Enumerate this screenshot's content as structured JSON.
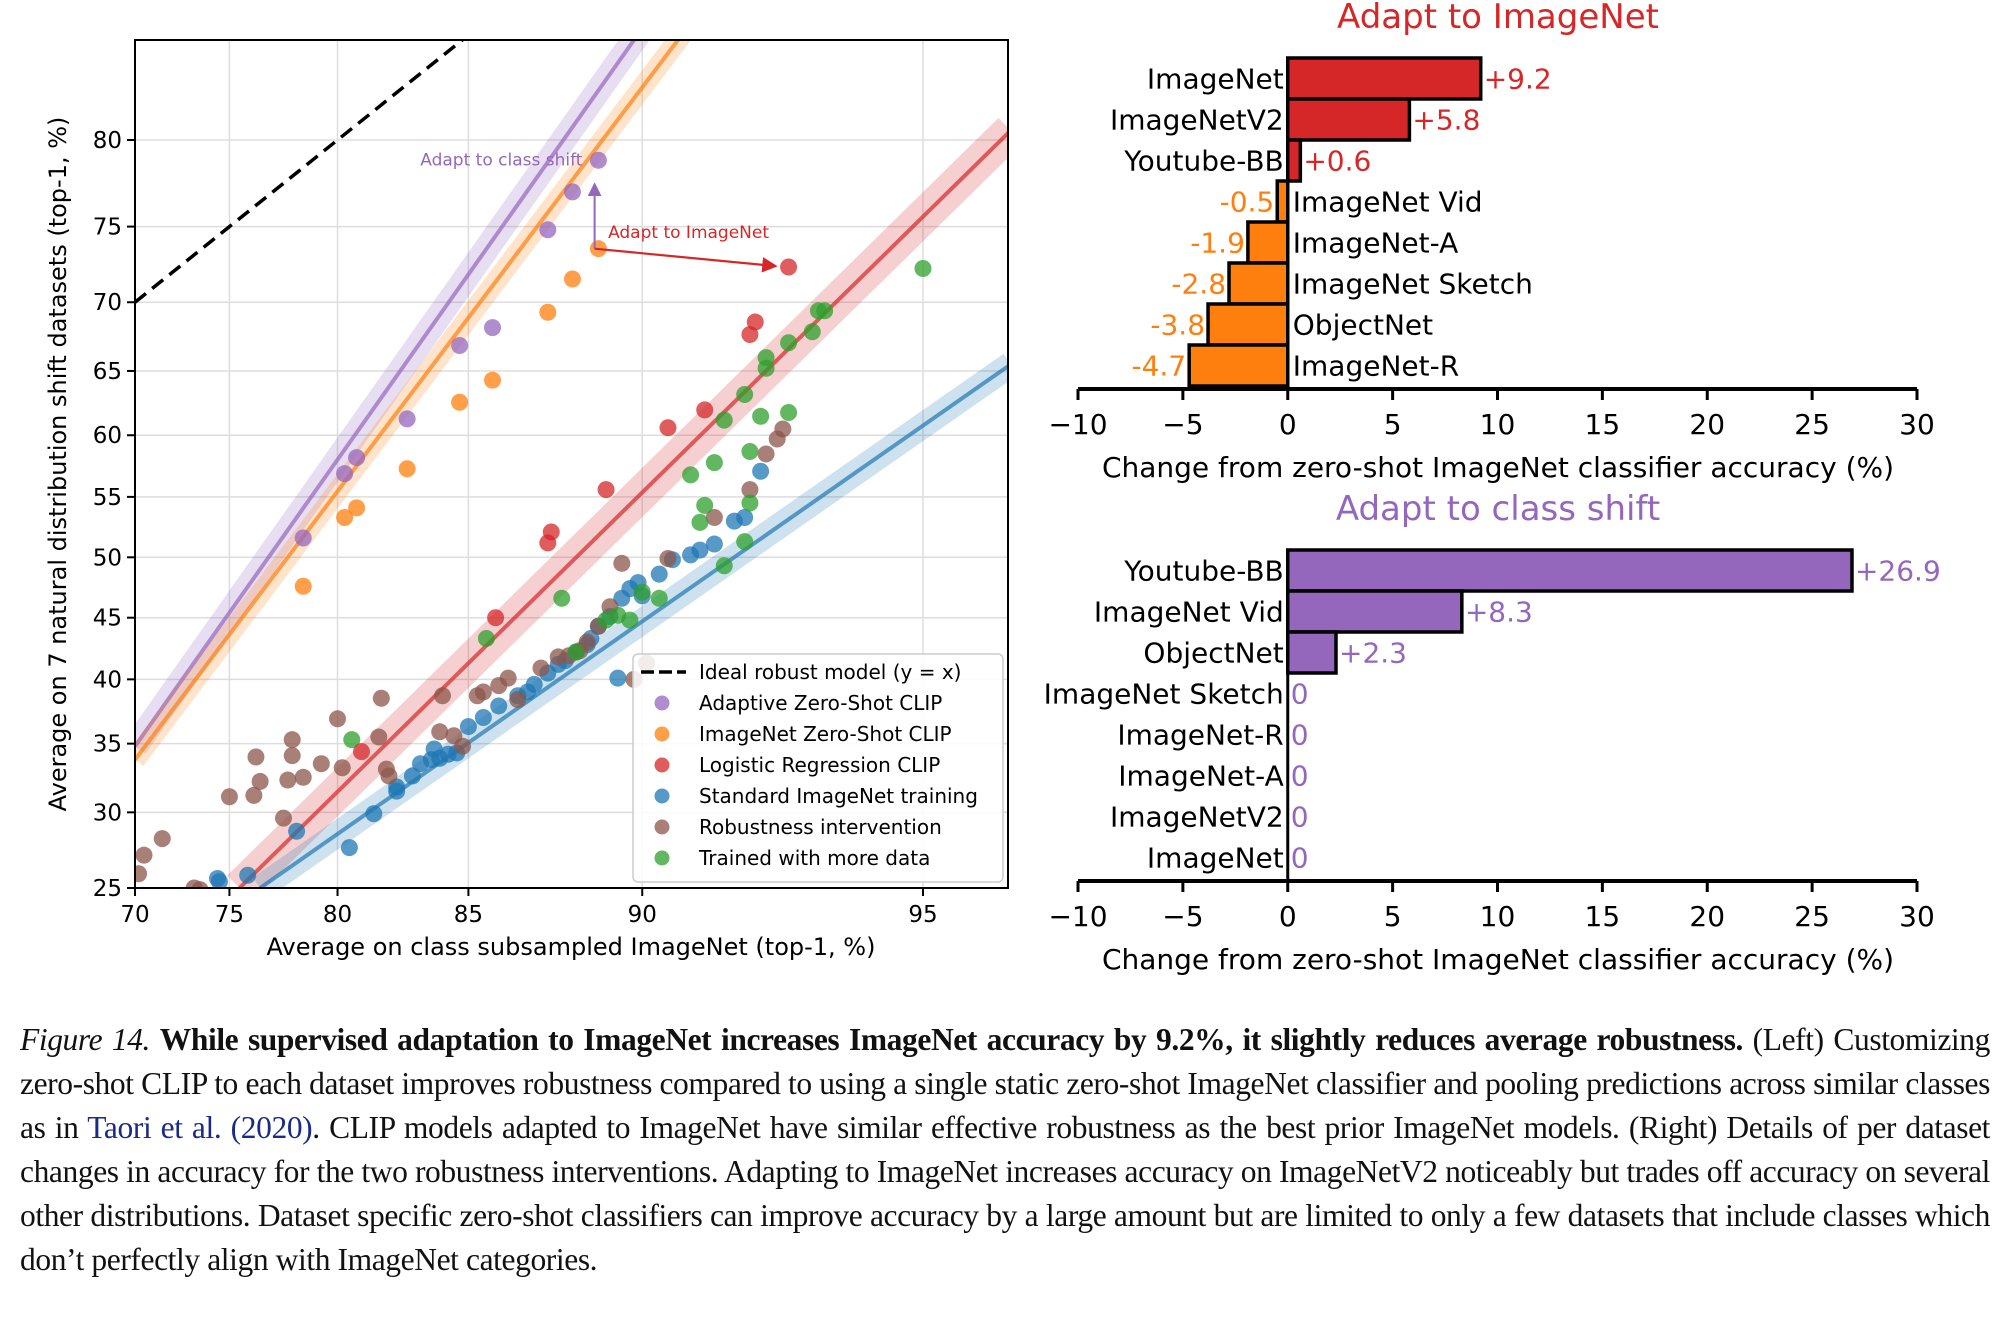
{
  "chart_data": [
    {
      "id": "left",
      "type": "scatter",
      "xlabel": "Average on class subsampled ImageNet (top-1, %)",
      "ylabel": "Average on 7 natural distribution shift datasets (top-1, %)",
      "xscale": "logit",
      "yscale": "logit",
      "xlim": [
        70,
        96
      ],
      "ylim": [
        25,
        84.8
      ],
      "xticks": [
        70,
        75,
        80,
        85,
        90,
        95
      ],
      "yticks": [
        25,
        30,
        35,
        40,
        45,
        50,
        55,
        60,
        65,
        70,
        75,
        80
      ],
      "grid": true,
      "legend_position": "lower-right",
      "legend": [
        {
          "label": "Ideal robust model (y = x)",
          "kind": "dashed-line",
          "color": "#000000"
        },
        {
          "label": "Adaptive Zero-Shot CLIP",
          "kind": "marker",
          "color": "#9467bd"
        },
        {
          "label": "ImageNet Zero-Shot CLIP",
          "kind": "marker",
          "color": "#ff7f0e"
        },
        {
          "label": "Logistic Regression CLIP",
          "kind": "marker",
          "color": "#d62728"
        },
        {
          "label": "Standard ImageNet training",
          "kind": "marker",
          "color": "#1f77b4"
        },
        {
          "label": "Robustness intervention",
          "kind": "marker",
          "color": "#8c564b"
        },
        {
          "label": "Trained with more data",
          "kind": "marker",
          "color": "#2ca02c"
        }
      ],
      "ideal_line": {
        "from": [
          70,
          70
        ],
        "to": [
          84.8,
          84.8
        ]
      },
      "fits": [
        {
          "series": "Adaptive Zero-Shot CLIP",
          "color": "#9467bd",
          "x": [
            70,
            90.5
          ],
          "y": [
            34.8,
            86.5
          ],
          "band": 1.6
        },
        {
          "series": "ImageNet Zero-Shot CLIP",
          "color": "#ff7f0e",
          "x": [
            70,
            91.5
          ],
          "y": [
            33.8,
            86.5
          ],
          "band": 1.3
        },
        {
          "series": "Logistic Regression CLIP",
          "color": "#d62728",
          "x": [
            75.5,
            96
          ],
          "y": [
            25,
            80.5
          ],
          "band": 2.2
        },
        {
          "series": "Standard ImageNet training",
          "color": "#1f77b4",
          "x": [
            76.5,
            96
          ],
          "y": [
            25,
            65.5
          ],
          "band": 1.6
        }
      ],
      "annotations": [
        {
          "text": "Adapt to class shift",
          "color": "#9467bd",
          "arrow_from": [
            88.8,
            73.6
          ],
          "arrow_to": [
            88.8,
            77.5
          ],
          "label_at": [
            88.2,
            78.9
          ]
        },
        {
          "text": "Adapt to ImageNet",
          "color": "#d62728",
          "arrow_from": [
            88.8,
            73.6
          ],
          "arrow_to": [
            93.0,
            72.4
          ],
          "label_at": [
            89.1,
            74.6
          ]
        }
      ],
      "series": [
        {
          "name": "Adaptive Zero-Shot CLIP",
          "color": "#9467bd",
          "points": [
            [
              78.5,
              51.6
            ],
            [
              80.3,
              56.9
            ],
            [
              80.8,
              58.2
            ],
            [
              82.8,
              61.3
            ],
            [
              84.7,
              66.9
            ],
            [
              85.8,
              68.2
            ],
            [
              87.5,
              74.8
            ],
            [
              88.2,
              77.1
            ],
            [
              88.9,
              78.9
            ]
          ]
        },
        {
          "name": "ImageNet Zero-Shot CLIP",
          "color": "#ff7f0e",
          "points": [
            [
              78.5,
              47.6
            ],
            [
              80.3,
              53.3
            ],
            [
              80.8,
              54.1
            ],
            [
              82.8,
              57.3
            ],
            [
              84.7,
              62.6
            ],
            [
              85.8,
              64.3
            ],
            [
              87.5,
              69.3
            ],
            [
              88.2,
              71.6
            ],
            [
              88.9,
              73.6
            ]
          ]
        },
        {
          "name": "Logistic Regression CLIP",
          "color": "#d62728",
          "points": [
            [
              81.0,
              34.4
            ],
            [
              85.9,
              45.0
            ],
            [
              87.5,
              51.2
            ],
            [
              87.6,
              52.1
            ],
            [
              89.1,
              55.6
            ],
            [
              90.6,
              60.6
            ],
            [
              91.4,
              62.0
            ],
            [
              92.3,
              67.7
            ],
            [
              92.4,
              68.6
            ],
            [
              93.0,
              72.4
            ]
          ]
        },
        {
          "name": "Standard ImageNet training",
          "color": "#1f77b4",
          "points": [
            [
              74.4,
              25.6
            ],
            [
              74.5,
              25.4
            ],
            [
              75.9,
              25.8
            ],
            [
              78.2,
              28.7
            ],
            [
              80.5,
              27.6
            ],
            [
              81.5,
              29.9
            ],
            [
              82.4,
              31.5
            ],
            [
              82.4,
              31.8
            ],
            [
              83.0,
              32.6
            ],
            [
              83.3,
              33.5
            ],
            [
              83.7,
              33.8
            ],
            [
              84.0,
              33.9
            ],
            [
              84.3,
              34.2
            ],
            [
              83.8,
              34.6
            ],
            [
              84.6,
              34.3
            ],
            [
              85.0,
              36.3
            ],
            [
              85.5,
              37.0
            ],
            [
              86.0,
              37.9
            ],
            [
              86.6,
              38.7
            ],
            [
              86.9,
              39.0
            ],
            [
              87.1,
              39.6
            ],
            [
              87.5,
              40.5
            ],
            [
              87.8,
              41.2
            ],
            [
              88.0,
              41.5
            ],
            [
              88.3,
              42.2
            ],
            [
              88.6,
              42.8
            ],
            [
              88.7,
              43.3
            ],
            [
              88.9,
              44.3
            ],
            [
              89.2,
              45.1
            ],
            [
              89.5,
              46.6
            ],
            [
              89.7,
              47.4
            ],
            [
              89.9,
              47.9
            ],
            [
              90.0,
              46.8
            ],
            [
              90.4,
              48.6
            ],
            [
              90.7,
              49.8
            ],
            [
              91.1,
              50.2
            ],
            [
              91.3,
              50.6
            ],
            [
              91.6,
              51.1
            ],
            [
              92.0,
              53.0
            ],
            [
              92.2,
              53.3
            ],
            [
              92.5,
              57.1
            ],
            [
              89.4,
              40.1
            ]
          ]
        },
        {
          "name": "Robustness intervention",
          "color": "#8c564b",
          "points": [
            [
              70.2,
              25.9
            ],
            [
              70.5,
              27.1
            ],
            [
              71.5,
              28.2
            ],
            [
              73.2,
              25.0
            ],
            [
              73.5,
              24.9
            ],
            [
              75.0,
              31.1
            ],
            [
              76.2,
              31.2
            ],
            [
              76.3,
              34.0
            ],
            [
              76.5,
              32.2
            ],
            [
              77.6,
              29.6
            ],
            [
              77.8,
              32.3
            ],
            [
              78.0,
              34.1
            ],
            [
              78.0,
              35.3
            ],
            [
              78.5,
              32.5
            ],
            [
              79.3,
              33.5
            ],
            [
              80.0,
              36.9
            ],
            [
              80.2,
              33.2
            ],
            [
              81.8,
              38.5
            ],
            [
              81.7,
              35.5
            ],
            [
              82.0,
              33.1
            ],
            [
              82.1,
              32.6
            ],
            [
              84.1,
              38.7
            ],
            [
              84.0,
              35.9
            ],
            [
              84.5,
              35.6
            ],
            [
              84.8,
              34.8
            ],
            [
              85.3,
              38.7
            ],
            [
              85.5,
              39.0
            ],
            [
              86.0,
              39.5
            ],
            [
              86.3,
              40.1
            ],
            [
              86.6,
              38.4
            ],
            [
              87.3,
              40.9
            ],
            [
              87.8,
              41.8
            ],
            [
              88.1,
              41.9
            ],
            [
              88.4,
              42.3
            ],
            [
              88.6,
              43.0
            ],
            [
              88.9,
              44.3
            ],
            [
              89.5,
              49.5
            ],
            [
              90.6,
              49.9
            ],
            [
              89.8,
              40.0
            ],
            [
              90.1,
              41.3
            ],
            [
              91.6,
              53.3
            ],
            [
              92.3,
              55.6
            ],
            [
              92.6,
              58.5
            ],
            [
              92.8,
              59.7
            ],
            [
              92.9,
              60.5
            ],
            [
              89.2,
              45.9
            ]
          ]
        },
        {
          "name": "Trained with more data",
          "color": "#2ca02c",
          "points": [
            [
              80.6,
              35.3
            ],
            [
              85.6,
              43.3
            ],
            [
              87.9,
              46.6
            ],
            [
              88.3,
              42.2
            ],
            [
              89.1,
              44.8
            ],
            [
              89.4,
              45.2
            ],
            [
              89.7,
              44.8
            ],
            [
              90.0,
              47.1
            ],
            [
              90.4,
              46.6
            ],
            [
              91.1,
              56.8
            ],
            [
              91.3,
              52.9
            ],
            [
              91.4,
              54.3
            ],
            [
              91.6,
              57.8
            ],
            [
              91.8,
              61.2
            ],
            [
              91.8,
              49.3
            ],
            [
              92.2,
              63.2
            ],
            [
              92.2,
              51.3
            ],
            [
              92.3,
              58.7
            ],
            [
              92.3,
              54.5
            ],
            [
              92.6,
              65.2
            ],
            [
              92.6,
              66.0
            ],
            [
              92.5,
              61.5
            ],
            [
              93.0,
              67.1
            ],
            [
              93.0,
              61.8
            ],
            [
              93.4,
              67.9
            ],
            [
              93.5,
              69.4
            ],
            [
              93.6,
              69.4
            ],
            [
              95.0,
              72.3
            ]
          ]
        }
      ]
    },
    {
      "id": "top-right",
      "type": "bar",
      "orientation": "horizontal",
      "title": "Adapt to ImageNet",
      "title_color": "#d62728",
      "xlabel": "Change from zero-shot ImageNet classifier accuracy (%)",
      "xlim": [
        -10,
        30
      ],
      "xticks": [
        "−10",
        "−5",
        "0",
        "5",
        "10",
        "15",
        "20",
        "25",
        "30"
      ],
      "xtick_values": [
        -10,
        -5,
        0,
        5,
        10,
        15,
        20,
        25,
        30
      ],
      "positive_color": "#d62728",
      "negative_color": "#ff7f0e",
      "categories": [
        "ImageNet",
        "ImageNetV2",
        "Youtube-BB",
        "ImageNet Vid",
        "ImageNet-A",
        "ImageNet Sketch",
        "ObjectNet",
        "ImageNet-R"
      ],
      "values": [
        9.2,
        5.8,
        0.6,
        -0.5,
        -1.9,
        -2.8,
        -3.8,
        -4.7
      ],
      "labels": [
        "+9.2",
        "+5.8",
        "+0.6",
        "-0.5",
        "-1.9",
        "-2.8",
        "-3.8",
        "-4.7"
      ]
    },
    {
      "id": "bottom-right",
      "type": "bar",
      "orientation": "horizontal",
      "title": "Adapt to class shift",
      "title_color": "#9467bd",
      "xlabel": "Change from zero-shot ImageNet classifier accuracy (%)",
      "xlim": [
        -10,
        30
      ],
      "xticks": [
        "−10",
        "−5",
        "0",
        "5",
        "10",
        "15",
        "20",
        "25",
        "30"
      ],
      "xtick_values": [
        -10,
        -5,
        0,
        5,
        10,
        15,
        20,
        25,
        30
      ],
      "positive_color": "#9467bd",
      "negative_color": "#9467bd",
      "categories": [
        "Youtube-BB",
        "ImageNet Vid",
        "ObjectNet",
        "ImageNet Sketch",
        "ImageNet-R",
        "ImageNet-A",
        "ImageNetV2",
        "ImageNet"
      ],
      "values": [
        26.9,
        8.3,
        2.3,
        0,
        0,
        0,
        0,
        0
      ],
      "labels": [
        "+26.9",
        "+8.3",
        "+2.3",
        "0",
        "0",
        "0",
        "0",
        "0"
      ]
    }
  ],
  "caption": {
    "figure_label": "Figure 14.",
    "bold_title": "While supervised adaptation to ImageNet increases ImageNet accuracy by 9.2%, it slightly reduces average robustness.",
    "body_part1": "(Left) Customizing zero-shot CLIP to each dataset improves robustness compared to using a single static zero-shot ImageNet classifier and pooling predictions across similar classes as in",
    "citation": "Taori et al. (2020)",
    "body_part2": ". CLIP models adapted to ImageNet have similar effective robustness as the best prior ImageNet models. (Right) Details of per dataset changes in accuracy for the two robustness interventions. Adapting to ImageNet increases accuracy on ImageNetV2 noticeably but trades off accuracy on several other distributions. Dataset specific zero-shot classifiers can improve accuracy by a large amount but are limited to only a few datasets that include classes which don’t perfectly align with ImageNet categories."
  }
}
